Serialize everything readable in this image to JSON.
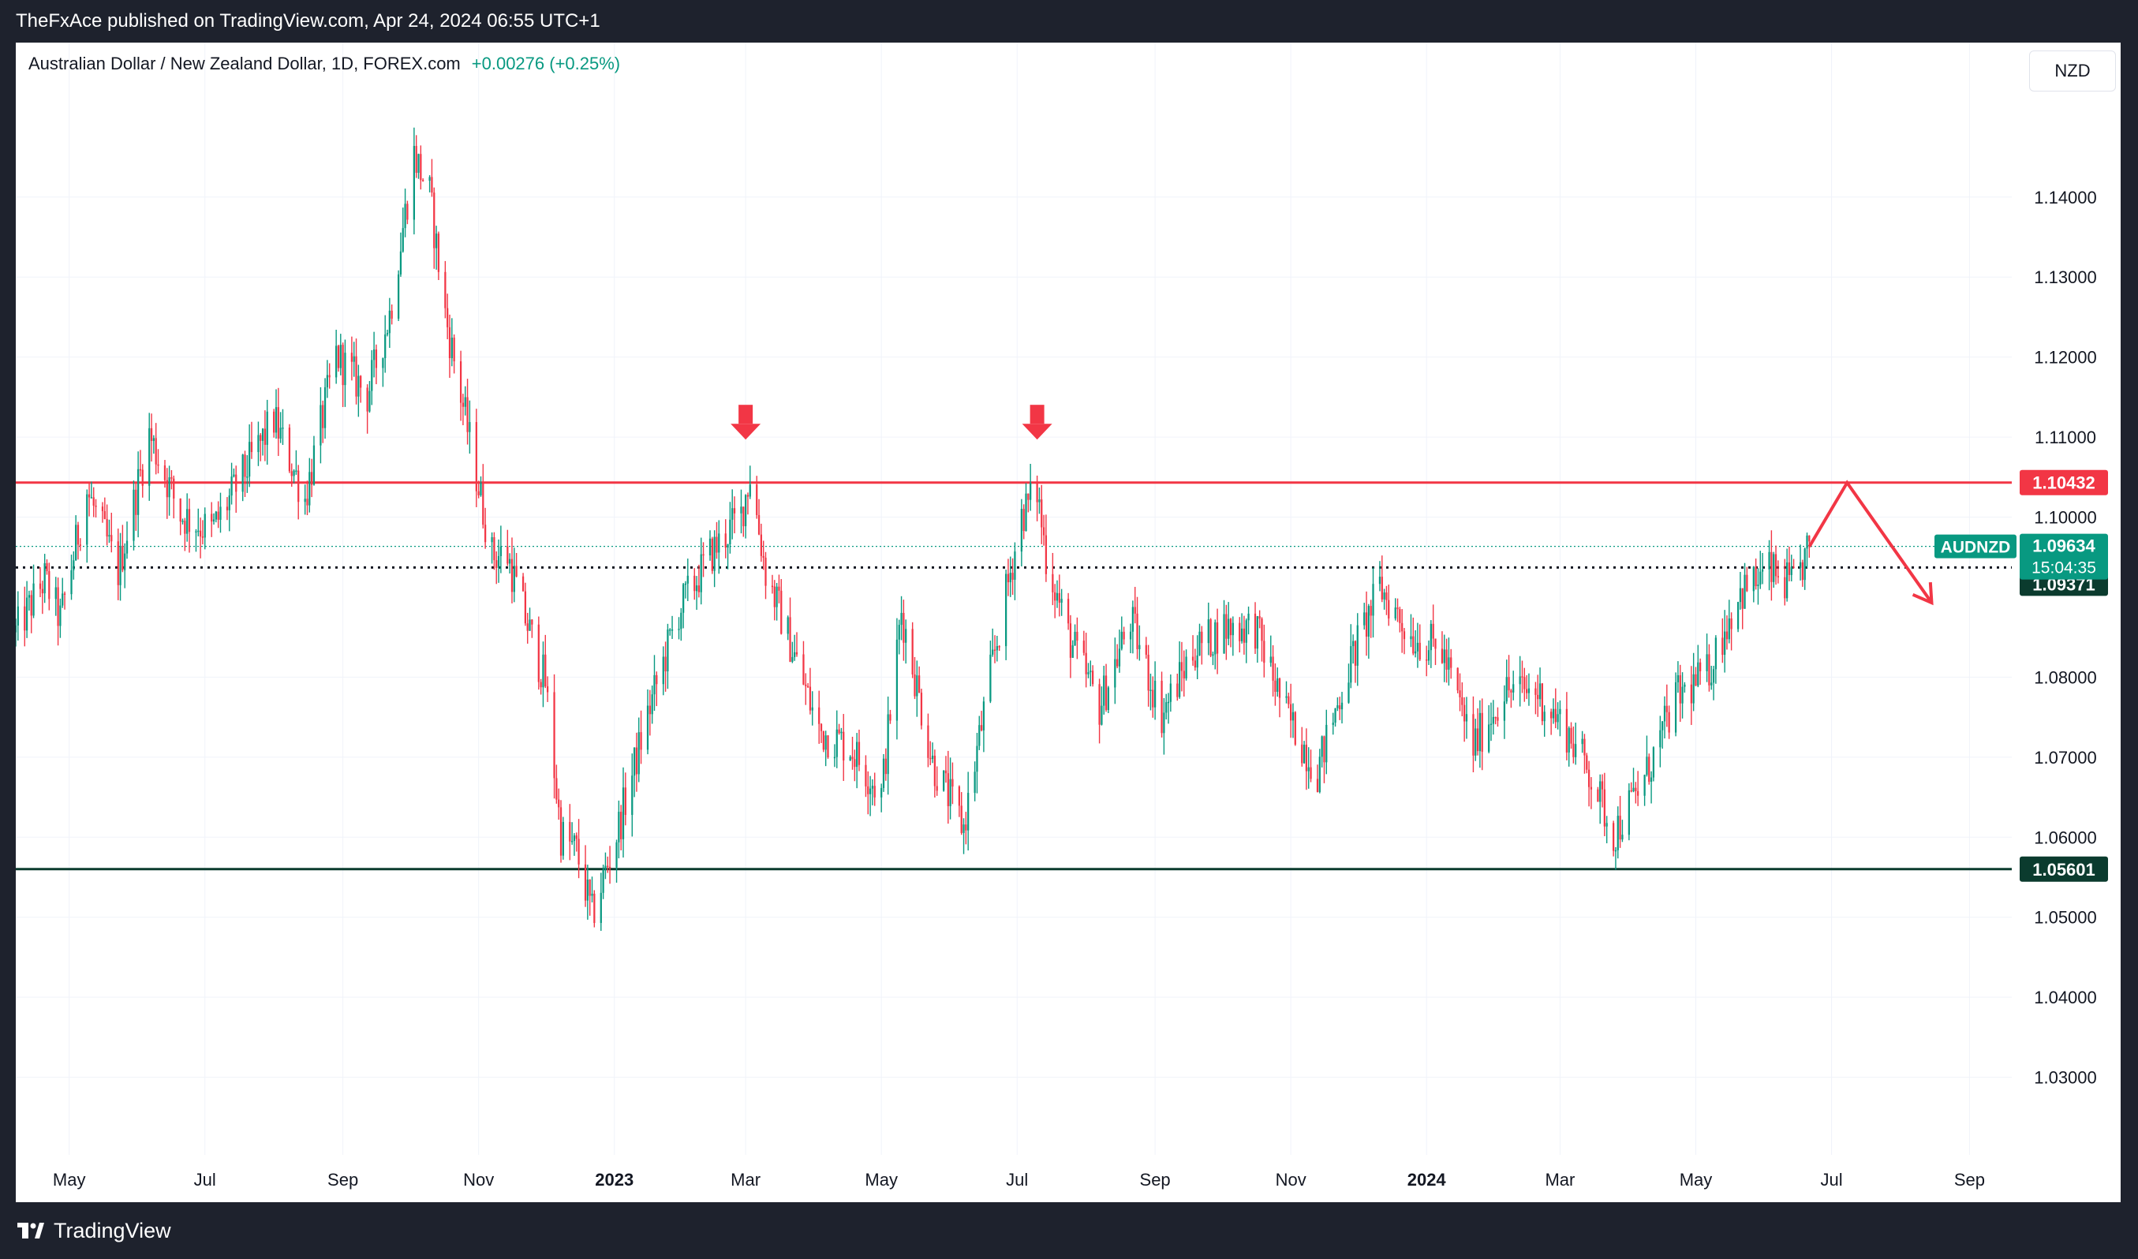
{
  "header": {
    "published_text": "TheFxAce published on TradingView.com, Apr 24, 2024 06:55 UTC+1"
  },
  "legend": {
    "title": "Australian Dollar / New Zealand Dollar, 1D, FOREX.com",
    "change": "+0.00276 (+0.25%)"
  },
  "currency_button": "NZD",
  "footer": {
    "brand": "TradingView",
    "logo_icon": "tradingview-logo-icon"
  },
  "colors": {
    "up": "#089981",
    "down": "#f23645",
    "resistance": "#f23645",
    "support": "#0b3b2e",
    "grid": "#f0f3fa",
    "arrow": "#f23645"
  },
  "chart_data": {
    "type": "candlestick",
    "symbol": "AUDNZD",
    "interval": "1D",
    "x_axis": {
      "tick_labels": [
        "May",
        "Jul",
        "Sep",
        "Nov",
        "2023",
        "Mar",
        "May",
        "Jul",
        "Sep",
        "Nov",
        "2024",
        "Mar",
        "May",
        "Jul",
        "Sep"
      ],
      "range": [
        "2022-04-07",
        "2024-09-20"
      ]
    },
    "y_axis": {
      "range": [
        1.0203,
        1.1593
      ],
      "tick_values": [
        1.03,
        1.04,
        1.05,
        1.06,
        1.07,
        1.08,
        1.1,
        1.11,
        1.12,
        1.13,
        1.14
      ],
      "tick_labels": [
        "1.03000",
        "1.04000",
        "1.05000",
        "1.06000",
        "1.07000",
        "1.08000",
        "1.10000",
        "1.11000",
        "1.12000",
        "1.13000",
        "1.14000"
      ]
    },
    "price_path": [
      [
        "2022-04-07",
        1.0856
      ],
      [
        "2022-04-20",
        1.0922
      ],
      [
        "2022-04-27",
        1.0872
      ],
      [
        "2022-05-09",
        1.1033
      ],
      [
        "2022-05-23",
        1.0932
      ],
      [
        "2022-06-06",
        1.1103
      ],
      [
        "2022-06-20",
        1.1003
      ],
      [
        "2022-07-04",
        1.0982
      ],
      [
        "2022-07-18",
        1.1052
      ],
      [
        "2022-08-01",
        1.1122
      ],
      [
        "2022-08-15",
        1.1023
      ],
      [
        "2022-08-29",
        1.1203
      ],
      [
        "2022-09-12",
        1.1153
      ],
      [
        "2022-09-22",
        1.1253
      ],
      [
        "2022-10-03",
        1.1453
      ],
      [
        "2022-10-10",
        1.1403
      ],
      [
        "2022-10-17",
        1.1253
      ],
      [
        "2022-10-24",
        1.1153
      ],
      [
        "2022-10-31",
        1.1053
      ],
      [
        "2022-11-07",
        1.0953
      ],
      [
        "2022-11-14",
        1.0952
      ],
      [
        "2022-11-21",
        1.0883
      ],
      [
        "2022-12-01",
        1.0793
      ],
      [
        "2022-12-08",
        1.0603
      ],
      [
        "2022-12-15",
        1.0582
      ],
      [
        "2022-12-22",
        1.0502
      ],
      [
        "2023-01-02",
        1.0603
      ],
      [
        "2023-01-16",
        1.0753
      ],
      [
        "2023-01-30",
        1.0883
      ],
      [
        "2023-02-13",
        1.0952
      ],
      [
        "2023-02-27",
        1.1003
      ],
      [
        "2023-03-03",
        1.1053
      ],
      [
        "2023-03-10",
        1.0932
      ],
      [
        "2023-03-20",
        1.0852
      ],
      [
        "2023-04-03",
        1.0733
      ],
      [
        "2023-04-17",
        1.0713
      ],
      [
        "2023-05-01",
        1.0653
      ],
      [
        "2023-05-10",
        1.0883
      ],
      [
        "2023-05-24",
        1.0693
      ],
      [
        "2023-06-07",
        1.0612
      ],
      [
        "2023-06-19",
        1.0803
      ],
      [
        "2023-07-03",
        1.1003
      ],
      [
        "2023-07-10",
        1.1033
      ],
      [
        "2023-07-14",
        1.0952
      ],
      [
        "2023-07-24",
        1.0852
      ],
      [
        "2023-08-07",
        1.0763
      ],
      [
        "2023-08-21",
        1.0872
      ],
      [
        "2023-09-04",
        1.0753
      ],
      [
        "2023-09-18",
        1.0833
      ],
      [
        "2023-10-02",
        1.0862
      ],
      [
        "2023-10-16",
        1.0863
      ],
      [
        "2023-10-30",
        1.0753
      ],
      [
        "2023-11-13",
        1.0683
      ],
      [
        "2023-11-27",
        1.0813
      ],
      [
        "2023-12-11",
        1.0912
      ],
      [
        "2023-12-25",
        1.0852
      ],
      [
        "2024-01-08",
        1.0832
      ],
      [
        "2024-01-22",
        1.0713
      ],
      [
        "2024-02-05",
        1.0783
      ],
      [
        "2024-02-19",
        1.0783
      ],
      [
        "2024-03-04",
        1.0733
      ],
      [
        "2024-03-14",
        1.0683
      ],
      [
        "2024-03-25",
        1.0603
      ],
      [
        "2024-04-08",
        1.0673
      ],
      [
        "2024-04-22",
        1.0773
      ],
      [
        "2024-05-06",
        1.0803
      ],
      [
        "2024-05-20",
        1.0903
      ],
      [
        "2024-06-03",
        1.0932
      ],
      [
        "2024-06-14",
        1.0912
      ],
      [
        "2024-06-21",
        1.0963
      ]
    ],
    "horizontal_levels": [
      {
        "price": 1.10432,
        "label": "1.10432",
        "style": "solid",
        "color": "#f23645"
      },
      {
        "price": 1.05601,
        "label": "1.05601",
        "style": "solid",
        "color": "#0b3b2e"
      },
      {
        "price": 1.09371,
        "label": "1.09371",
        "style": "dotted",
        "color": "#131722"
      }
    ],
    "current_price": {
      "price": 1.09634,
      "label": "1.09634",
      "symbol": "AUDNZD",
      "countdown": "15:04:35"
    },
    "annotations": [
      {
        "type": "down-arrow-marker",
        "date": "2023-03-01",
        "price": 1.1093
      },
      {
        "type": "down-arrow-marker",
        "date": "2023-07-10",
        "price": 1.1093
      },
      {
        "type": "projected-path",
        "points": [
          [
            "2024-06-21",
            1.0963
          ],
          [
            "2024-07-08",
            1.1043
          ],
          [
            "2024-08-15",
            1.0893
          ]
        ]
      }
    ],
    "grid": true
  }
}
